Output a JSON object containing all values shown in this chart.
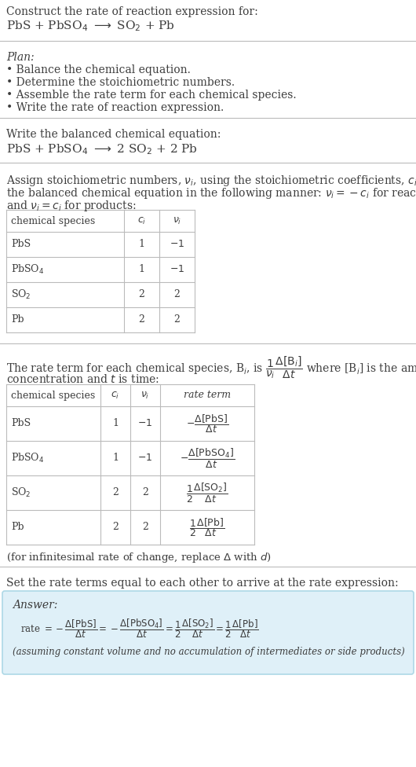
{
  "bg_color": "#ffffff",
  "text_color": "#3d3d3d",
  "light_blue_bg": "#dff0f8",
  "line_color": "#bbbbbb",
  "title_text": "Construct the rate of reaction expression for:",
  "plan_title": "Plan:",
  "plan_bullets": [
    "Balance the chemical equation.",
    "Determine the stoichiometric numbers.",
    "Assemble the rate term for each chemical species.",
    "Write the rate of reaction expression."
  ],
  "balanced_label": "Write the balanced chemical equation:",
  "stoich_intro_line1": "Assign stoichiometric numbers, $\\nu_i$, using the stoichiometric coefficients, $c_i$, from",
  "stoich_intro_line2": "the balanced chemical equation in the following manner: $\\nu_i = -c_i$ for reactants",
  "stoich_intro_line3": "and $\\nu_i = c_i$ for products:",
  "rate_intro_line1": "concentration and $t$ is time:",
  "set_equal_text": "Set the rate terms equal to each other to arrive at the rate expression:",
  "answer_label": "Answer:",
  "answer_note": "(assuming constant volume and no accumulation of intermediates or side products)",
  "infinitesimal_note": "(for infinitesimal rate of change, replace $\\Delta$ with $d$)"
}
